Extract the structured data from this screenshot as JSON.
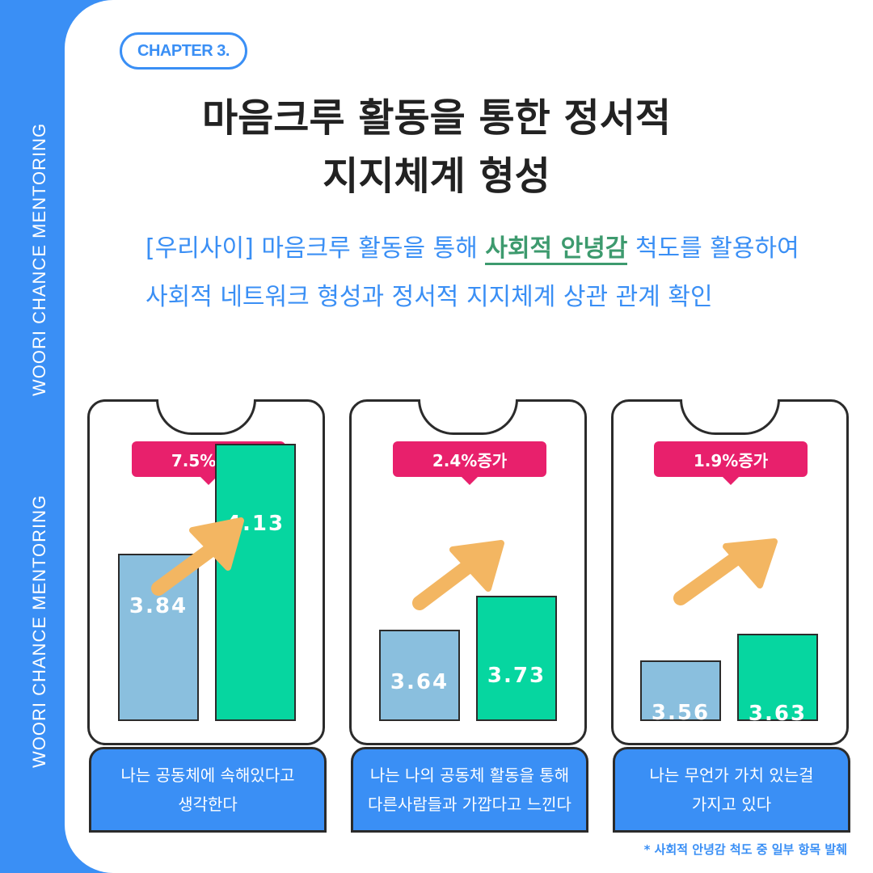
{
  "side_text": [
    "WOORI CHANCE MENTORING",
    "WOORI CHANCE MENTORING"
  ],
  "chapter": "CHAPTER 3.",
  "title": [
    "마음크루 활동을 통한 정서적",
    "지지체계 형성"
  ],
  "description": {
    "before": "[우리사이] 마음크루 활동을 통해 ",
    "highlight": "사회적 안녕감",
    "after": " 척도를 활용하여 사회적 네트워크 형성과 정서적 지지체계 상관 관계 확인"
  },
  "colors": {
    "blue": "#3a8ff5",
    "before_bar": "#8abfde",
    "after_bar": "#06d6a0",
    "badge": "#e8206c",
    "arrow": "#f3b662"
  },
  "chart_data": [
    {
      "type": "bar",
      "badge": "7.5%증가",
      "values": [
        3.84,
        4.13
      ],
      "label": [
        "나는 공동체에 속해있다고",
        "생각한다"
      ]
    },
    {
      "type": "bar",
      "badge": "2.4%증가",
      "values": [
        3.64,
        3.73
      ],
      "label": [
        "나는 나의 공동체 활동을 통해",
        "다른사람들과 가깝다고 느낀다"
      ]
    },
    {
      "type": "bar",
      "badge": "1.9%증가",
      "values": [
        3.56,
        3.63
      ],
      "label": [
        "나는 무언가 가치 있는걸",
        "가지고 있다"
      ]
    }
  ],
  "footnote": "* 사회적 안녕감 척도 중 일부 항목 발췌"
}
